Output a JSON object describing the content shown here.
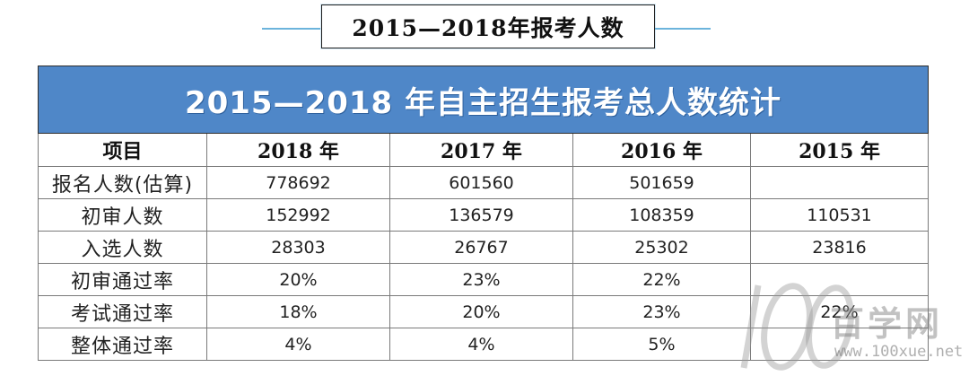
{
  "header": {
    "banner_title": "2015—2018年报考人数"
  },
  "table": {
    "title": "2015—2018 年自主招生报考总人数统计",
    "columns": [
      "项目",
      "2018 年",
      "2017 年",
      "2016 年",
      "2015 年"
    ],
    "rows": [
      {
        "label": "报名人数(估算)",
        "values": [
          "778692",
          "601560",
          "501659",
          ""
        ]
      },
      {
        "label": "初审人数",
        "values": [
          "152992",
          "136579",
          "108359",
          "110531"
        ]
      },
      {
        "label": "入选人数",
        "values": [
          "28303",
          "26767",
          "25302",
          "23816"
        ]
      },
      {
        "label": "初审通过率",
        "values": [
          "20%",
          "23%",
          "22%",
          ""
        ]
      },
      {
        "label": "考试通过率",
        "values": [
          "18%",
          "20%",
          "23%",
          "22%"
        ]
      },
      {
        "label": "整体通过率",
        "values": [
          "4%",
          "4%",
          "5%",
          ""
        ]
      }
    ]
  },
  "watermark": {
    "logo_text": "100",
    "brand": "百学网",
    "url": "www.100xue.net"
  },
  "colors": {
    "title_bg": "#4f87c8",
    "banner_line": "#6cb4dc"
  }
}
